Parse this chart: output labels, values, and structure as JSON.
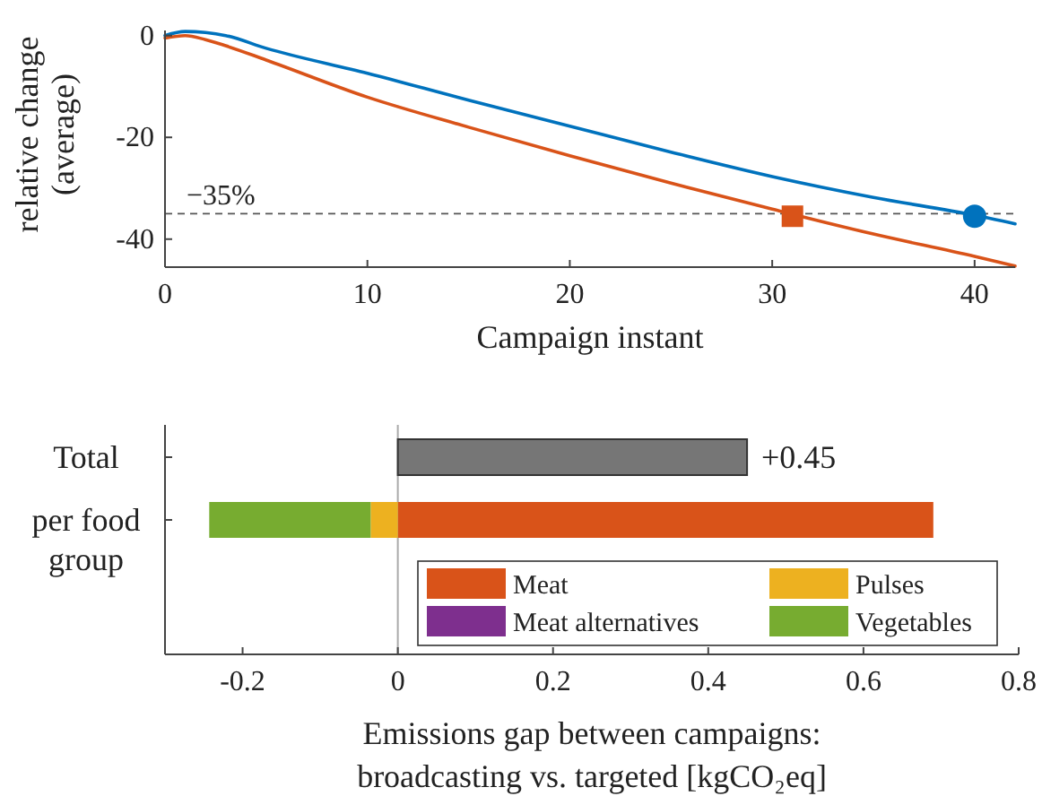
{
  "chart_data": [
    {
      "type": "line",
      "xlabel": "Campaign instant",
      "ylabel": "relative change\n(average)",
      "xlim": [
        0,
        42
      ],
      "ylim": [
        -45.5,
        1
      ],
      "xticks": [
        0,
        10,
        20,
        30,
        40
      ],
      "yticks": [
        {
          "value": 0,
          "label": "0"
        },
        {
          "value": -20,
          "label": "-20"
        },
        {
          "value": -40,
          "label": "-40"
        }
      ],
      "grid": false,
      "series": [
        {
          "color": "#0072bd",
          "x": [
            0,
            1,
            2,
            3,
            5,
            10,
            15,
            20,
            25,
            30,
            35,
            40,
            42
          ],
          "values": [
            0,
            0.8,
            0.6,
            0,
            -2.5,
            -7.4,
            -12.7,
            -17.8,
            -22.9,
            -27.7,
            -31.8,
            -35.3,
            -37
          ]
        },
        {
          "color": "#d95319",
          "x": [
            0,
            1,
            2,
            3,
            5,
            10,
            15,
            20,
            25,
            30,
            35,
            40,
            42
          ],
          "values": [
            -0.5,
            0,
            -0.8,
            -2,
            -4.8,
            -12.1,
            -18,
            -23.6,
            -29,
            -34.1,
            -39,
            -43.4,
            -45.3
          ]
        },
        {
          "type": "scatter",
          "color": "#d95319",
          "marker": "square",
          "x": [
            31
          ],
          "values": [
            -35.5
          ]
        },
        {
          "type": "scatter",
          "color": "#0072bd",
          "marker": "circle",
          "x": [
            40
          ],
          "values": [
            -35.5
          ]
        }
      ],
      "ref_lines": [
        {
          "axis": "y",
          "value": -35,
          "label": "−35%",
          "color": "#555555",
          "line_style": "dashed"
        }
      ]
    },
    {
      "type": "bar",
      "orientation": "horizontal",
      "stacked": true,
      "categories": [
        "Total",
        "per food\ngroup"
      ],
      "xlabel": "Emissions gap between campaigns:\nbroadcasting vs. targeted [kgCO₂eq]",
      "xlim": [
        -0.3,
        0.8
      ],
      "xticks": [
        -0.2,
        0,
        0.2,
        0.4,
        0.6,
        0.8
      ],
      "grid": false,
      "legend": "bottom right",
      "series": [
        {
          "color": "#767676",
          "values": [
            0.45,
            null
          ],
          "value_labels": [
            "+0.45",
            null
          ]
        },
        {
          "name": "Meat",
          "color": "#d95319",
          "values": [
            null,
            0.69
          ]
        },
        {
          "name": "Meat alternatives",
          "color": "#7e2f8e",
          "values": [
            null,
            0
          ]
        },
        {
          "name": "Pulses",
          "color": "#edb120",
          "values": [
            null,
            -0.035
          ]
        },
        {
          "name": "Vegetables",
          "color": "#77ac30",
          "values": [
            null,
            -0.208
          ]
        }
      ],
      "ref_lines": [
        {
          "axis": "x",
          "value": 0,
          "color": "#aaaaaa"
        }
      ]
    }
  ]
}
